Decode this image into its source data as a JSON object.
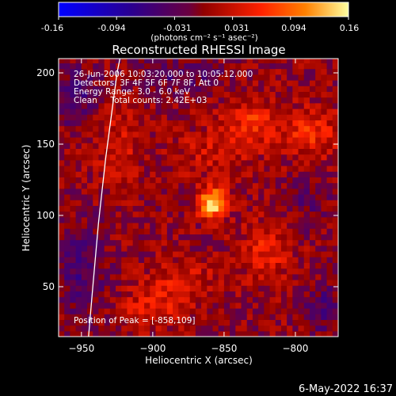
{
  "colorbar": {
    "tick_labels": [
      "-0.16",
      "-0.094",
      "-0.031",
      "0.031",
      "0.094",
      "0.16"
    ],
    "unit_label": "(photons cm⁻² s⁻¹ asec⁻²)",
    "range": [
      -0.16,
      0.16
    ]
  },
  "chart_data": {
    "type": "heatmap",
    "title": "Reconstructed RHESSI Image",
    "xlabel": "Heliocentric X (arcsec)",
    "ylabel": "Heliocentric Y (arcsec)",
    "xlim": [
      -966,
      -770
    ],
    "ylim": [
      15,
      210
    ],
    "x_ticks": [
      -950,
      -900,
      -850,
      -800
    ],
    "y_ticks": [
      50,
      100,
      150,
      200
    ],
    "info_lines": [
      "26-Jun-2006 10:03:20.000 to 10:05:12.000",
      "Detectors: 3F 4F 5F 6F 7F 8F, Att 0",
      "Energy Range: 3.0 - 6.0 keV",
      "Clean     Total counts: 2.42E+03"
    ],
    "peak_text": "Position of Peak = [-858,109]",
    "peak": {
      "x": -858,
      "y": 109
    },
    "limb_curve": [
      [
        -945,
        15
      ],
      [
        -942,
        50
      ],
      [
        -938,
        95
      ],
      [
        -933,
        140
      ],
      [
        -929,
        170
      ],
      [
        -925,
        200
      ],
      [
        -923,
        210
      ]
    ],
    "features": [
      {
        "x": -858,
        "y": 109,
        "amp": 0.16,
        "sx": 7,
        "sy": 7
      },
      {
        "x": -830,
        "y": 165,
        "amp": 0.06,
        "sx": 12,
        "sy": 12
      },
      {
        "x": -790,
        "y": 158,
        "amp": 0.06,
        "sx": 14,
        "sy": 12
      },
      {
        "x": -820,
        "y": 75,
        "amp": 0.055,
        "sx": 12,
        "sy": 14
      },
      {
        "x": -880,
        "y": 55,
        "amp": 0.04,
        "sx": 18,
        "sy": 10
      },
      {
        "x": -900,
        "y": 35,
        "amp": 0.045,
        "sx": 16,
        "sy": 10
      },
      {
        "x": -925,
        "y": 150,
        "amp": 0.035,
        "sx": 12,
        "sy": 20
      },
      {
        "x": -860,
        "y": 145,
        "amp": 0.03,
        "sx": 18,
        "sy": 14
      },
      {
        "x": -955,
        "y": 185,
        "amp": -0.05,
        "sx": 12,
        "sy": 14
      },
      {
        "x": -950,
        "y": 60,
        "amp": -0.045,
        "sx": 12,
        "sy": 25
      },
      {
        "x": -880,
        "y": 200,
        "amp": -0.04,
        "sx": 20,
        "sy": 8
      },
      {
        "x": -780,
        "y": 35,
        "amp": -0.045,
        "sx": 10,
        "sy": 12
      },
      {
        "x": -790,
        "y": 110,
        "amp": -0.03,
        "sx": 10,
        "sy": 14
      }
    ]
  },
  "footer": {
    "date_stamp": "6-May-2022 16:37"
  }
}
